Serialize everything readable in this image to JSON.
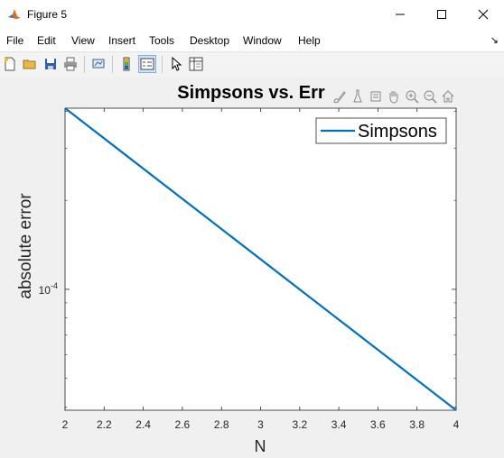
{
  "window": {
    "title": "Figure 5",
    "minimize_icon": "minimize-icon",
    "maximize_icon": "maximize-icon",
    "close_icon": "close-icon"
  },
  "menu": {
    "items": [
      "File",
      "Edit",
      "View",
      "Insert",
      "Tools",
      "Desktop",
      "Window",
      "Help"
    ]
  },
  "toolbar": {
    "icons": [
      "new-figure-icon",
      "open-file-icon",
      "save-icon",
      "print-icon",
      "link-plot-icon",
      "colorbar-icon",
      "legend-icon",
      "pointer-icon",
      "property-inspector-icon"
    ]
  },
  "axes_toolbar": {
    "icons": [
      "brush-icon",
      "data-tips-icon",
      "rotate-icon",
      "pan-icon",
      "zoom-in-icon",
      "zoom-out-icon",
      "home-icon"
    ]
  },
  "chart_data": {
    "type": "line",
    "title": "Simpsons vs. Err",
    "xlabel": "N",
    "ylabel": "absolute error",
    "xlim": [
      2,
      4
    ],
    "x_ticks": [
      "2",
      "2.2",
      "2.4",
      "2.6",
      "2.8",
      "3",
      "3.2",
      "3.4",
      "3.6",
      "3.8",
      "4"
    ],
    "y_scale": "log",
    "y_tick_label": {
      "base": "10",
      "exponent": "-4"
    },
    "ylim": [
      3.9e-05,
      0.00041
    ],
    "grid": false,
    "legend_placement": "top-right",
    "series": [
      {
        "name": "Simpsons",
        "color": "#0072BD",
        "x": [
          2,
          4
        ],
        "y": [
          0.00041,
          3.9e-05
        ]
      }
    ]
  }
}
